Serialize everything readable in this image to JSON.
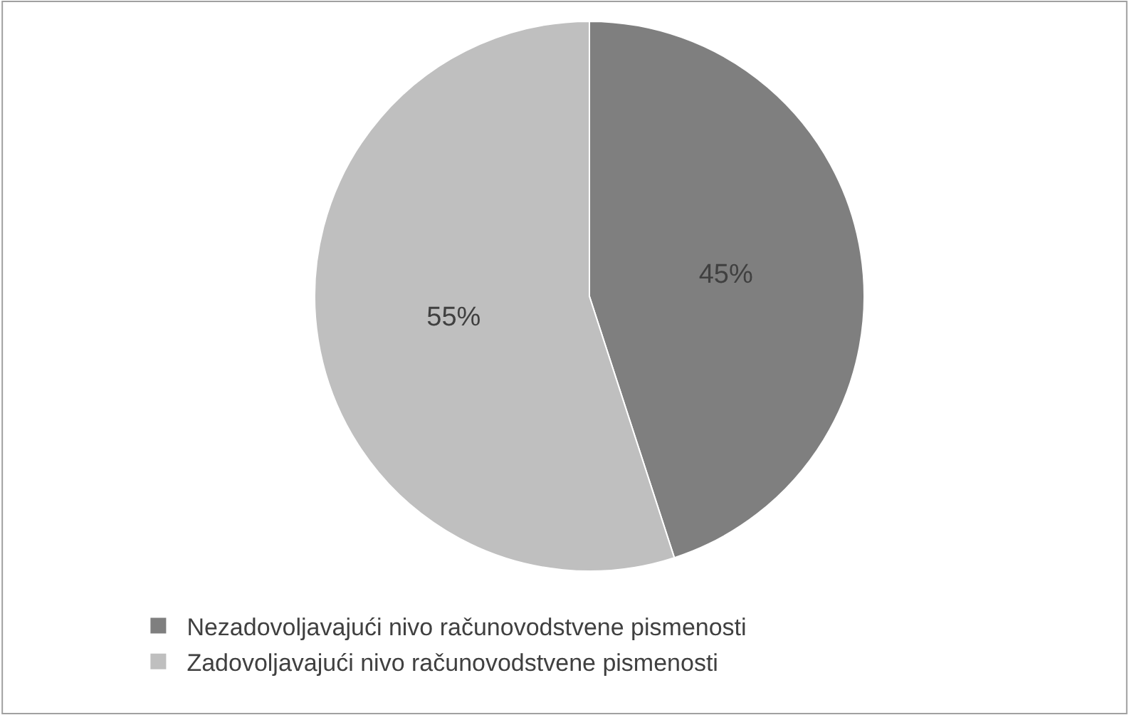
{
  "chart_data": {
    "type": "pie",
    "categories": [
      "Nezadovoljavajući nivo računovodstvene pismenosti",
      "Zadovoljavajući nivo računovodstvene pismenosti"
    ],
    "values": [
      45,
      55
    ],
    "colors": [
      "#7f7f7f",
      "#bfbfbf"
    ],
    "value_labels": [
      "45%",
      "55%"
    ],
    "legend": "bottom left"
  }
}
